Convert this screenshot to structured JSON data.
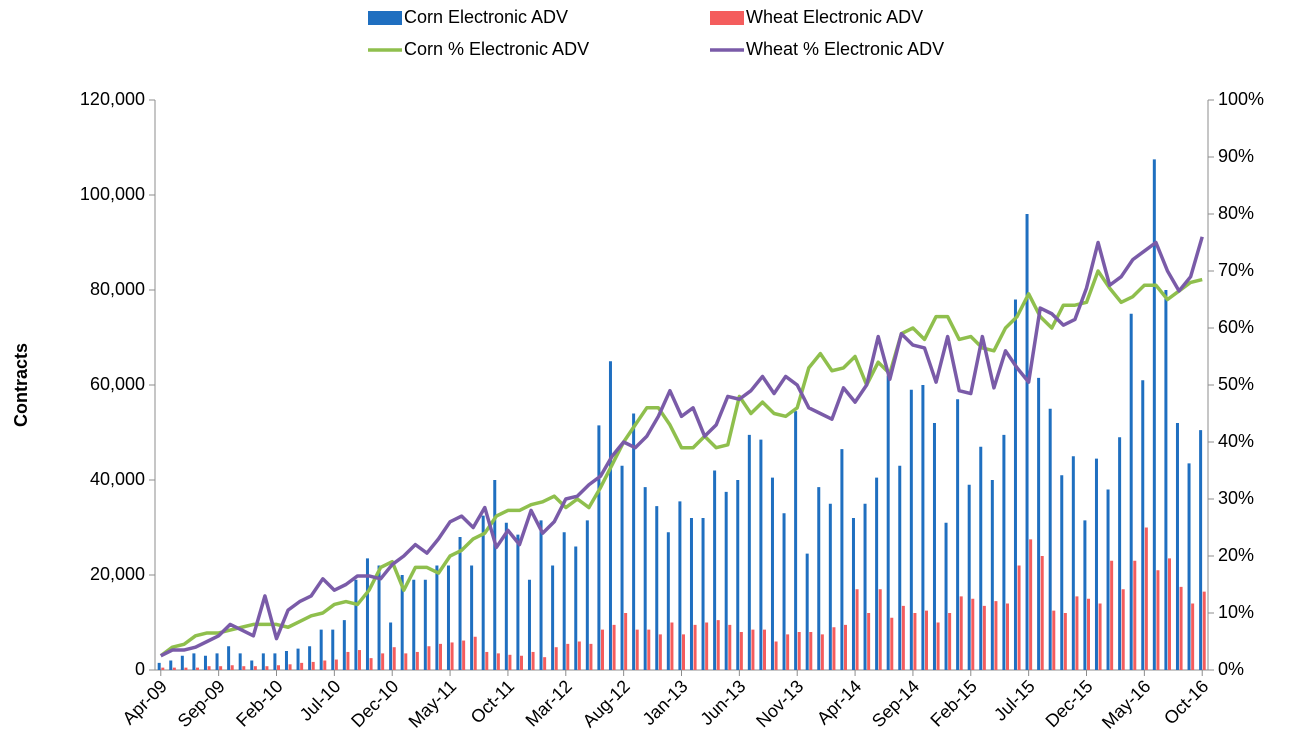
{
  "chart_data": {
    "type": "bar-line",
    "y_label": "Contracts",
    "categories": [
      "Apr-09",
      null,
      null,
      null,
      null,
      "Sep-09",
      null,
      null,
      null,
      null,
      "Feb-10",
      null,
      null,
      null,
      null,
      "Jul-10",
      null,
      null,
      null,
      null,
      "Dec-10",
      null,
      null,
      null,
      null,
      "May-11",
      null,
      null,
      null,
      null,
      "Oct-11",
      null,
      null,
      null,
      null,
      "Mar-12",
      null,
      null,
      null,
      null,
      "Aug-12",
      null,
      null,
      null,
      null,
      "Jan-13",
      null,
      null,
      null,
      null,
      "Jun-13",
      null,
      null,
      null,
      null,
      "Nov-13",
      null,
      null,
      null,
      null,
      "Apr-14",
      null,
      null,
      null,
      null,
      "Sep-14",
      null,
      null,
      null,
      null,
      "Feb-15",
      null,
      null,
      null,
      null,
      "Jul-15",
      null,
      null,
      null,
      null,
      "Dec-15",
      null,
      null,
      null,
      null,
      "May-16",
      null,
      null,
      null,
      null,
      "Oct-16"
    ],
    "series": [
      {
        "name": "Corn Electronic ADV",
        "kind": "bar",
        "color": "#1f6fc0",
        "values": [
          1500,
          2000,
          3000,
          3500,
          3000,
          3500,
          5000,
          3500,
          2000,
          3500,
          3500,
          4000,
          4500,
          5000,
          8500,
          8500,
          10500,
          19000,
          23500,
          22000,
          10000,
          20000,
          19000,
          19000,
          22000,
          22000,
          28000,
          22000,
          32500,
          40000,
          31000,
          28500,
          19000,
          31500,
          22000,
          29000,
          26000,
          31500,
          51500,
          65000,
          43000,
          54000,
          38500,
          34500,
          29000,
          35500,
          32000,
          32000,
          42000,
          37500,
          40000,
          49500,
          48500,
          40500,
          33000,
          54500,
          24500,
          38500,
          35000,
          46500,
          32000,
          35000,
          40500,
          62000,
          43000,
          59000,
          60000,
          52000,
          31000,
          57000,
          39000,
          47000,
          40000,
          49500,
          78000,
          96000,
          61500,
          55000,
          41000,
          45000,
          31500,
          44500,
          38000,
          49000,
          75000,
          61000,
          107500,
          80000,
          52000,
          43500,
          50500
        ]
      },
      {
        "name": "Wheat Electronic ADV",
        "kind": "bar",
        "color": "#f45d5d",
        "values": [
          500,
          500,
          500,
          500,
          800,
          800,
          1000,
          800,
          800,
          800,
          1000,
          1200,
          1500,
          1700,
          2000,
          2200,
          3800,
          4200,
          2500,
          3500,
          4800,
          3500,
          3800,
          5000,
          5500,
          5800,
          6200,
          7000,
          3800,
          3500,
          3200,
          3000,
          3800,
          2700,
          4800,
          5500,
          6000,
          5500,
          8500,
          9500,
          12000,
          8500,
          8500,
          7500,
          10000,
          7500,
          9500,
          10000,
          10500,
          9500,
          8000,
          8500,
          8500,
          6000,
          7500,
          8000,
          8000,
          7500,
          9000,
          9500,
          17000,
          12000,
          17000,
          11000,
          13500,
          12000,
          12500,
          10000,
          12000,
          15500,
          15000,
          13500,
          14500,
          14000,
          22000,
          27500,
          24000,
          12500,
          12000,
          15500,
          15000,
          14000,
          23000,
          17000,
          23000,
          30000,
          21000,
          23500,
          17500,
          14000,
          16500
        ]
      },
      {
        "name": "Corn % Electronic ADV",
        "kind": "line",
        "axis": "y2",
        "color": "#8fbf4d",
        "values": [
          2.5,
          4,
          4.5,
          6,
          6.5,
          6.5,
          7,
          7.5,
          8,
          8,
          8,
          7.5,
          8.5,
          9.5,
          10,
          11.5,
          12,
          11.5,
          14,
          18,
          19,
          14,
          18,
          18,
          17,
          20,
          21,
          23,
          24,
          27,
          28,
          28,
          29,
          29.5,
          30.5,
          28.5,
          30,
          28.5,
          32,
          36,
          40,
          43,
          46,
          46,
          43,
          39,
          39,
          41,
          39,
          39.5,
          48,
          45,
          47,
          45,
          44.5,
          46,
          53,
          55.5,
          52.5,
          53,
          55,
          50,
          54,
          52,
          59,
          60,
          58,
          62,
          62,
          58,
          58.5,
          56.5,
          56,
          60,
          62,
          66,
          62,
          60,
          64,
          64,
          64.5,
          70,
          67,
          64.5,
          65.5,
          67.5,
          67.5,
          65,
          66.5,
          68,
          68.5
        ]
      },
      {
        "name": "Wheat % Electronic ADV",
        "kind": "line",
        "axis": "y2",
        "color": "#7a5ba8",
        "values": [
          2.5,
          3.5,
          3.5,
          4,
          5,
          6,
          8,
          7,
          6,
          13,
          5.5,
          10.5,
          12,
          13,
          16,
          14,
          15,
          16.5,
          16.5,
          16,
          18.5,
          20,
          22,
          20.5,
          23,
          26,
          27,
          25,
          28.5,
          21.5,
          24.5,
          22,
          28,
          24,
          26,
          30,
          30.5,
          32.5,
          34,
          37.5,
          40,
          39,
          41,
          44.5,
          49,
          44.5,
          46,
          41,
          43,
          48,
          47.5,
          49,
          51.5,
          48.5,
          51.5,
          50,
          46,
          45,
          44,
          49.5,
          47,
          50,
          58.5,
          51,
          59,
          57,
          56.5,
          50.5,
          58.5,
          49,
          48.5,
          58.5,
          49.5,
          56,
          53,
          50.5,
          63.5,
          62.5,
          60.5,
          61.5,
          67,
          75,
          67.5,
          69,
          72,
          73.5,
          75,
          70,
          66.5,
          69,
          76
        ]
      }
    ],
    "ylim": [
      0,
      120000
    ],
    "yticks": [
      0,
      {
        "value": 20000,
        "label": "20,000"
      },
      {
        "value": 40000,
        "label": "40,000"
      },
      {
        "value": 60000,
        "label": "60,000"
      },
      {
        "value": 80000,
        "label": "80,000"
      },
      {
        "value": 100000,
        "label": "100,000"
      },
      {
        "value": 120000,
        "label": "120,000"
      }
    ],
    "y2lim": [
      0,
      100
    ],
    "y2ticks": [
      {
        "value": 0,
        "label": "0%"
      },
      {
        "value": 10,
        "label": "10%"
      },
      {
        "value": 20,
        "label": "20%"
      },
      {
        "value": 30,
        "label": "30%"
      },
      {
        "value": 40,
        "label": "40%"
      },
      {
        "value": 50,
        "label": "50%"
      },
      {
        "value": 60,
        "label": "60%"
      },
      {
        "value": 70,
        "label": "70%"
      },
      {
        "value": 80,
        "label": "80%"
      },
      {
        "value": 90,
        "label": "90%"
      },
      {
        "value": 100,
        "label": "100%"
      }
    ],
    "legend": "top",
    "grid": false
  }
}
